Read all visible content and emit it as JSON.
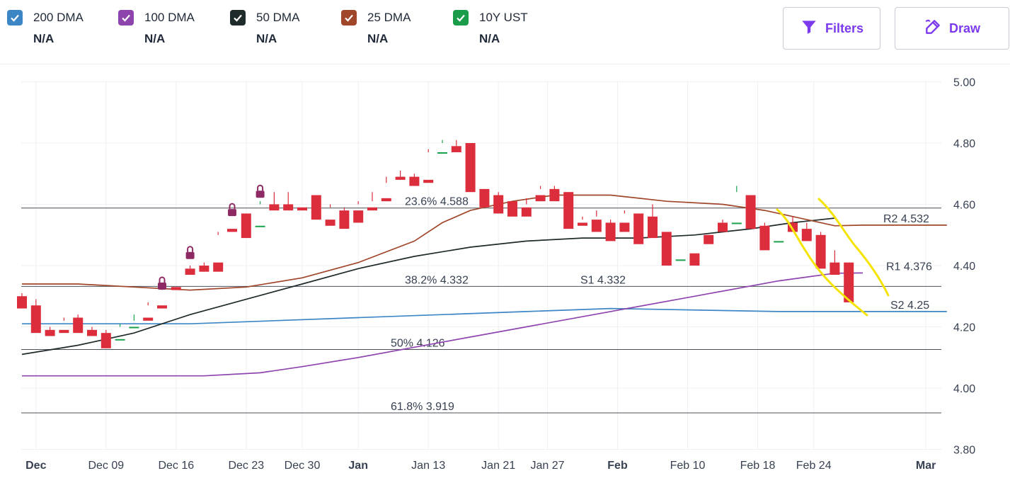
{
  "legend": [
    {
      "name": "200 DMA",
      "value": "N/A",
      "color": "#3d86c6"
    },
    {
      "name": "100 DMA",
      "value": "N/A",
      "color": "#8e44ad"
    },
    {
      "name": "50 DMA",
      "value": "N/A",
      "color": "#1f2a2a"
    },
    {
      "name": "25 DMA",
      "value": "N/A",
      "color": "#a0462a"
    },
    {
      "name": "10Y UST",
      "value": "N/A",
      "color": "#1a9c4b"
    }
  ],
  "toolbar": {
    "filters_label": "Filters",
    "draw_label": "Draw",
    "accent": "#7c3aed"
  },
  "chart_data": {
    "type": "candlestick",
    "y_ticks": [
      "5.00",
      "4.80",
      "4.60",
      "4.40",
      "4.20",
      "4.00",
      "3.80"
    ],
    "ylim": [
      3.8,
      5.0
    ],
    "x_ticks": [
      {
        "label": "Dec",
        "bold": true,
        "index": 1
      },
      {
        "label": "Dec 09",
        "bold": false,
        "index": 6
      },
      {
        "label": "Dec 16",
        "bold": false,
        "index": 11
      },
      {
        "label": "Dec 23",
        "bold": false,
        "index": 16
      },
      {
        "label": "Dec 30",
        "bold": false,
        "index": 20
      },
      {
        "label": "Jan",
        "bold": true,
        "index": 24
      },
      {
        "label": "Jan 13",
        "bold": false,
        "index": 29
      },
      {
        "label": "Jan 21",
        "bold": false,
        "index": 34
      },
      {
        "label": "Jan 27",
        "bold": false,
        "index": 37.5
      },
      {
        "label": "Feb",
        "bold": true,
        "index": 42.5
      },
      {
        "label": "Feb 10",
        "bold": false,
        "index": 47.5
      },
      {
        "label": "Feb 18",
        "bold": false,
        "index": 52.5
      },
      {
        "label": "Feb 24",
        "bold": false,
        "index": 56.5
      },
      {
        "label": "Mar",
        "bold": true,
        "index": 64.5
      }
    ],
    "fib_levels": [
      {
        "label": "23.6% 4.588",
        "value": 4.588
      },
      {
        "label": "38.2% 4.332",
        "value": 4.332
      },
      {
        "label": "50% 4.126",
        "value": 4.126
      },
      {
        "label": "61.8% 3.919",
        "value": 3.919
      }
    ],
    "pivots": [
      {
        "label": "R2 4.532",
        "value": 4.532
      },
      {
        "label": "R1 4.376",
        "value": 4.376
      },
      {
        "label": "S1 4.332",
        "value": 4.332
      },
      {
        "label": "S2 4.25",
        "value": 4.25
      }
    ],
    "candles": [
      [
        4.3,
        4.31,
        4.27,
        4.26
      ],
      [
        4.27,
        4.29,
        4.19,
        4.18
      ],
      [
        4.19,
        4.2,
        4.18,
        4.17
      ],
      [
        4.19,
        4.23,
        4.22,
        4.18
      ],
      [
        4.23,
        4.24,
        4.19,
        4.18
      ],
      [
        4.19,
        4.2,
        4.18,
        4.17
      ],
      [
        4.18,
        4.19,
        4.15,
        4.13
      ],
      [
        4.16,
        4.21,
        4.2,
        4.16
      ],
      [
        4.2,
        4.24,
        4.22,
        4.2
      ],
      [
        4.23,
        4.28,
        4.27,
        4.22
      ],
      [
        4.27,
        4.34,
        4.32,
        4.26
      ],
      [
        4.33,
        4.4,
        4.4,
        4.32
      ],
      [
        4.39,
        4.4,
        4.39,
        4.37
      ],
      [
        4.4,
        4.41,
        4.38,
        4.38
      ],
      [
        4.41,
        4.51,
        4.5,
        4.38
      ],
      [
        4.52,
        4.57,
        4.57,
        4.51
      ],
      [
        4.57,
        4.57,
        4.53,
        4.49
      ],
      [
        4.53,
        4.61,
        4.6,
        4.53
      ],
      [
        4.6,
        4.64,
        4.59,
        4.58
      ],
      [
        4.6,
        4.64,
        4.59,
        4.58
      ],
      [
        4.59,
        4.63,
        4.63,
        4.58
      ],
      [
        4.63,
        4.63,
        4.55,
        4.55
      ],
      [
        4.55,
        4.6,
        4.59,
        4.53
      ],
      [
        4.58,
        4.59,
        4.58,
        4.52
      ],
      [
        4.58,
        4.61,
        4.6,
        4.54
      ],
      [
        4.59,
        4.64,
        4.61,
        4.58
      ],
      [
        4.62,
        4.69,
        4.67,
        4.61
      ],
      [
        4.69,
        4.71,
        4.69,
        4.68
      ],
      [
        4.69,
        4.7,
        4.69,
        4.66
      ],
      [
        4.68,
        4.78,
        4.77,
        4.67
      ],
      [
        4.77,
        4.81,
        4.8,
        4.77
      ],
      [
        4.79,
        4.81,
        4.79,
        4.77
      ],
      [
        4.8,
        4.8,
        4.65,
        4.64
      ],
      [
        4.65,
        4.65,
        4.61,
        4.59
      ],
      [
        4.63,
        4.64,
        4.62,
        4.57
      ],
      [
        4.61,
        4.61,
        4.58,
        4.56
      ],
      [
        4.59,
        4.62,
        4.6,
        4.56
      ],
      [
        4.63,
        4.66,
        4.65,
        4.61
      ],
      [
        4.65,
        4.66,
        4.63,
        4.61
      ],
      [
        4.64,
        4.64,
        4.53,
        4.52
      ],
      [
        4.54,
        4.56,
        4.55,
        4.53
      ],
      [
        4.55,
        4.58,
        4.56,
        4.51
      ],
      [
        4.54,
        4.55,
        4.52,
        4.48
      ],
      [
        4.54,
        4.57,
        4.58,
        4.51
      ],
      [
        4.57,
        4.57,
        4.56,
        4.47
      ],
      [
        4.56,
        4.6,
        4.51,
        4.49
      ],
      [
        4.51,
        4.51,
        4.42,
        4.4
      ],
      [
        4.42,
        4.44,
        4.44,
        4.42
      ],
      [
        4.44,
        4.49,
        4.49,
        4.4
      ],
      [
        4.5,
        4.51,
        4.51,
        4.47
      ],
      [
        4.54,
        4.55,
        4.54,
        4.51
      ],
      [
        4.54,
        4.66,
        4.64,
        4.54
      ],
      [
        4.63,
        4.63,
        4.53,
        4.52
      ],
      [
        4.53,
        4.54,
        4.48,
        4.45
      ],
      [
        4.48,
        4.54,
        4.54,
        4.48
      ],
      [
        4.54,
        4.56,
        4.52,
        4.51
      ],
      [
        4.52,
        4.54,
        4.5,
        4.48
      ],
      [
        4.5,
        4.51,
        4.41,
        4.39
      ],
      [
        4.41,
        4.45,
        4.38,
        4.37
      ],
      [
        4.41,
        4.41,
        4.3,
        4.28
      ]
    ],
    "series": [
      {
        "name": "200 DMA",
        "color": "#3d86c6",
        "points": [
          [
            0,
            4.21
          ],
          [
            12,
            4.21
          ],
          [
            24,
            4.23
          ],
          [
            36,
            4.25
          ],
          [
            42,
            4.26
          ],
          [
            54,
            4.25
          ],
          [
            60,
            4.25
          ],
          [
            66,
            4.25
          ]
        ]
      },
      {
        "name": "100 DMA",
        "color": "#8e44ad",
        "points": [
          [
            0,
            4.04
          ],
          [
            6,
            4.04
          ],
          [
            13,
            4.04
          ],
          [
            17,
            4.05
          ],
          [
            20,
            4.07
          ],
          [
            24,
            4.1
          ],
          [
            30,
            4.15
          ],
          [
            36,
            4.2
          ],
          [
            42,
            4.25
          ],
          [
            48,
            4.3
          ],
          [
            54,
            4.35
          ],
          [
            58,
            4.375
          ],
          [
            60,
            4.376
          ]
        ]
      },
      {
        "name": "50 DMA",
        "color": "#1f2a2a",
        "points": [
          [
            0,
            4.11
          ],
          [
            4,
            4.14
          ],
          [
            8,
            4.18
          ],
          [
            12,
            4.24
          ],
          [
            16,
            4.29
          ],
          [
            20,
            4.34
          ],
          [
            24,
            4.39
          ],
          [
            28,
            4.43
          ],
          [
            32,
            4.46
          ],
          [
            36,
            4.48
          ],
          [
            40,
            4.49
          ],
          [
            44,
            4.49
          ],
          [
            48,
            4.5
          ],
          [
            52,
            4.52
          ],
          [
            55,
            4.54
          ],
          [
            58,
            4.555
          ]
        ]
      },
      {
        "name": "25 DMA",
        "color": "#a0462a",
        "points": [
          [
            0,
            4.34
          ],
          [
            4,
            4.34
          ],
          [
            8,
            4.33
          ],
          [
            12,
            4.32
          ],
          [
            16,
            4.33
          ],
          [
            20,
            4.36
          ],
          [
            24,
            4.41
          ],
          [
            28,
            4.48
          ],
          [
            30,
            4.54
          ],
          [
            32,
            4.58
          ],
          [
            35,
            4.61
          ],
          [
            38,
            4.63
          ],
          [
            42,
            4.63
          ],
          [
            46,
            4.61
          ],
          [
            50,
            4.6
          ],
          [
            53,
            4.58
          ],
          [
            56,
            4.55
          ],
          [
            58,
            4.53
          ],
          [
            60,
            4.532
          ],
          [
            66,
            4.532
          ]
        ]
      }
    ],
    "annotation_color": "#f5e400"
  }
}
